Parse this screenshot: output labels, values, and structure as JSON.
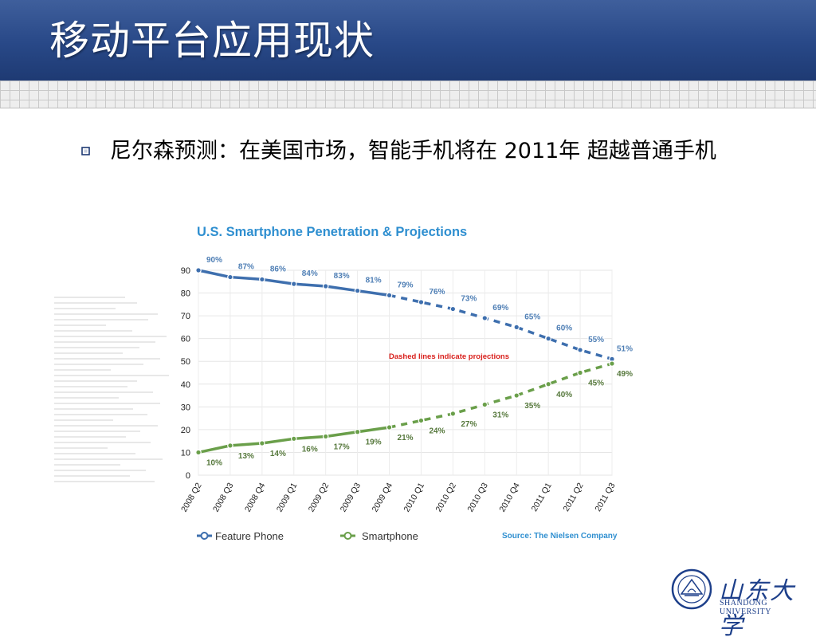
{
  "slide": {
    "title": "移动平台应用现状",
    "bullet_text": "尼尔森预测：在美国市场，智能手机将在 2011年 超越普通手机"
  },
  "chart_data": {
    "type": "line",
    "title": "U.S. Smartphone Penetration & Projections",
    "categories": [
      "2008 Q2",
      "2008 Q3",
      "2008 Q4",
      "2009 Q1",
      "2009 Q2",
      "2009 Q3",
      "2009 Q4",
      "2010 Q1",
      "2010 Q2",
      "2010 Q3",
      "2010 Q4",
      "2011 Q1",
      "2011 Q2",
      "2011 Q3"
    ],
    "series": [
      {
        "name": "Feature Phone",
        "color": "#3e6fae",
        "values": [
          90,
          87,
          86,
          84,
          83,
          81,
          79,
          76,
          73,
          69,
          65,
          60,
          55,
          51
        ]
      },
      {
        "name": "Smartphone",
        "color": "#6a9f4a",
        "values": [
          10,
          13,
          14,
          16,
          17,
          19,
          21,
          24,
          27,
          31,
          35,
          40,
          45,
          49
        ]
      }
    ],
    "projection_start_index": 6,
    "ylim": [
      0,
      90
    ],
    "yticks": [
      0,
      10,
      20,
      30,
      40,
      50,
      60,
      70,
      80,
      90
    ],
    "annotation": "Dashed lines indicate projections",
    "annotation_color": "#d9201c",
    "source": "Source: The Nielsen Company",
    "title_color": "#2f8fd0",
    "legend_position": "bottom",
    "grid": true
  },
  "logo": {
    "cn": "山东大学",
    "en": "SHANDONG UNIVERSITY"
  }
}
